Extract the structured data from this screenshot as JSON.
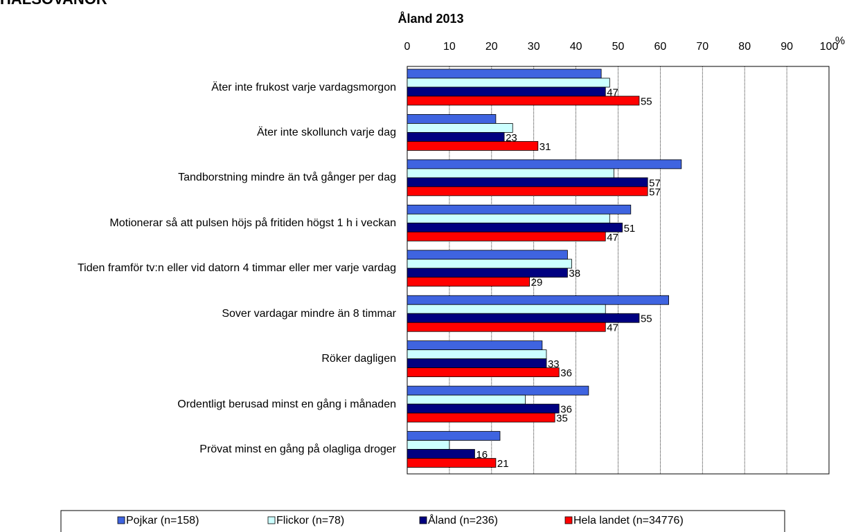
{
  "chart_data": {
    "type": "hbar",
    "header": "HÄLSOVANOR",
    "title": "Åland 2013",
    "x_label": "%",
    "categories": [
      "Äter inte frukost varje vardagsmorgon",
      "Äter inte skollunch varje dag",
      "Tandborstning mindre än två gånger per dag",
      "Motionerar så att pulsen höjs på fritiden högst 1 h i veckan",
      "Tiden framför tv:n eller vid datorn 4 timmar eller mer varje vardag",
      "Sover vardagar mindre än 8 timmar",
      "Röker dagligen",
      "Ordentligt berusad minst en gång i månaden",
      "Prövat minst en gång på olagliga droger"
    ],
    "series": [
      {
        "name": "Pojkar (n=158)",
        "color": "#3f64e0",
        "show_labels": false,
        "values": [
          46,
          21,
          65,
          53,
          38,
          62,
          32,
          43,
          22
        ]
      },
      {
        "name": "Flickor (n=78)",
        "color": "#ccffff",
        "show_labels": false,
        "values": [
          48,
          25,
          49,
          48,
          39,
          47,
          33,
          28,
          10
        ]
      },
      {
        "name": "Åland (n=236)",
        "color": "#000080",
        "show_labels": true,
        "values": [
          47,
          23,
          57,
          51,
          38,
          55,
          33,
          36,
          16
        ]
      },
      {
        "name": "Hela landet (n=34776)",
        "color": "#ff0000",
        "show_labels": true,
        "values": [
          55,
          31,
          57,
          47,
          29,
          47,
          36,
          35,
          21
        ]
      }
    ],
    "xlim": [
      0,
      100
    ],
    "xticks": [
      0,
      10,
      20,
      30,
      40,
      50,
      60,
      70,
      80,
      90,
      100
    ],
    "grid": true,
    "legend": "bottom"
  }
}
